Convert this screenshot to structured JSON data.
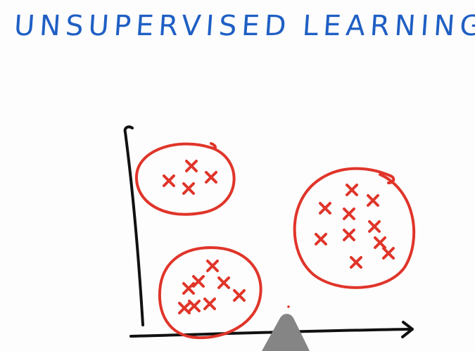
{
  "title": {
    "word1": "UNSUPERVISED",
    "word2": "LEARNING"
  },
  "colors": {
    "title_ink": "#1f5fc4",
    "marker_ink": "#e0352a",
    "axis_ink": "#111111",
    "pen": "#888888"
  },
  "clusters": [
    {
      "name": "top-left-cluster",
      "point_count": 4
    },
    {
      "name": "bottom-left-cluster",
      "point_count": 8
    },
    {
      "name": "right-cluster",
      "point_count": 10
    }
  ]
}
